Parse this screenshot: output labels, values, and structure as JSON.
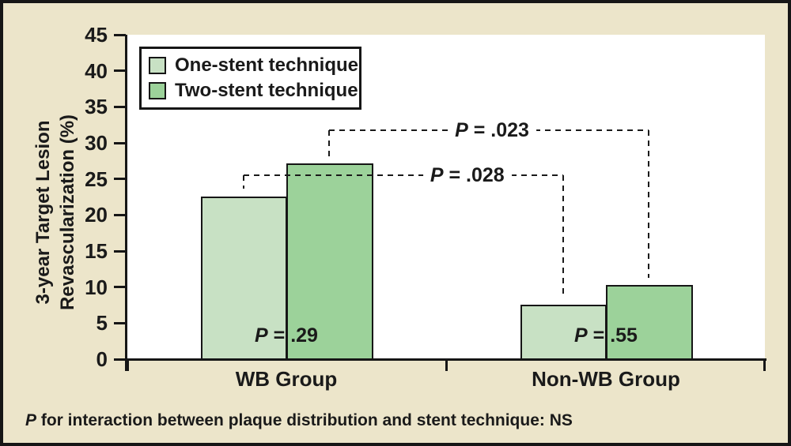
{
  "colors": {
    "background": "#ece5ca",
    "plot_background": "#ffffff",
    "axis_and_text": "#1a1a1a",
    "one_stent_green": "#c8e1c4",
    "two_stent_green": "#9cd29a"
  },
  "legend": {
    "items": [
      {
        "label": "One-stent technique",
        "color": "#c8e1c4"
      },
      {
        "label": "Two-stent technique",
        "color": "#9cd29a"
      }
    ]
  },
  "chart_data": {
    "type": "bar",
    "title": "",
    "ylabel_lines": [
      "3-year Target Lesion",
      "Revascularization (%)"
    ],
    "categories": [
      "WB Group",
      "Non-WB Group"
    ],
    "series": [
      {
        "name": "One-stent technique",
        "color": "#c8e1c4",
        "values": [
          22.5,
          7.5
        ]
      },
      {
        "name": "Two-stent technique",
        "color": "#9cd29a",
        "values": [
          27,
          10.2
        ]
      }
    ],
    "ylim": [
      0,
      45
    ],
    "yticks": [
      0,
      5,
      10,
      15,
      20,
      25,
      30,
      35,
      40,
      45
    ],
    "grid": false,
    "legend_position": "inside-top-left",
    "within_group_p": [
      {
        "group": "WB Group",
        "label": "P = .29"
      },
      {
        "group": "Non-WB Group",
        "label": "P = .55"
      }
    ],
    "between_group_p": [
      {
        "series": "One-stent technique",
        "label": "P = .028",
        "bracket_height_pct": 25.4
      },
      {
        "series": "Two-stent technique",
        "label": "P = .023",
        "bracket_height_pct": 31.6
      }
    ],
    "footnote": "P for interaction between plaque distribution and stent technique: NS"
  }
}
